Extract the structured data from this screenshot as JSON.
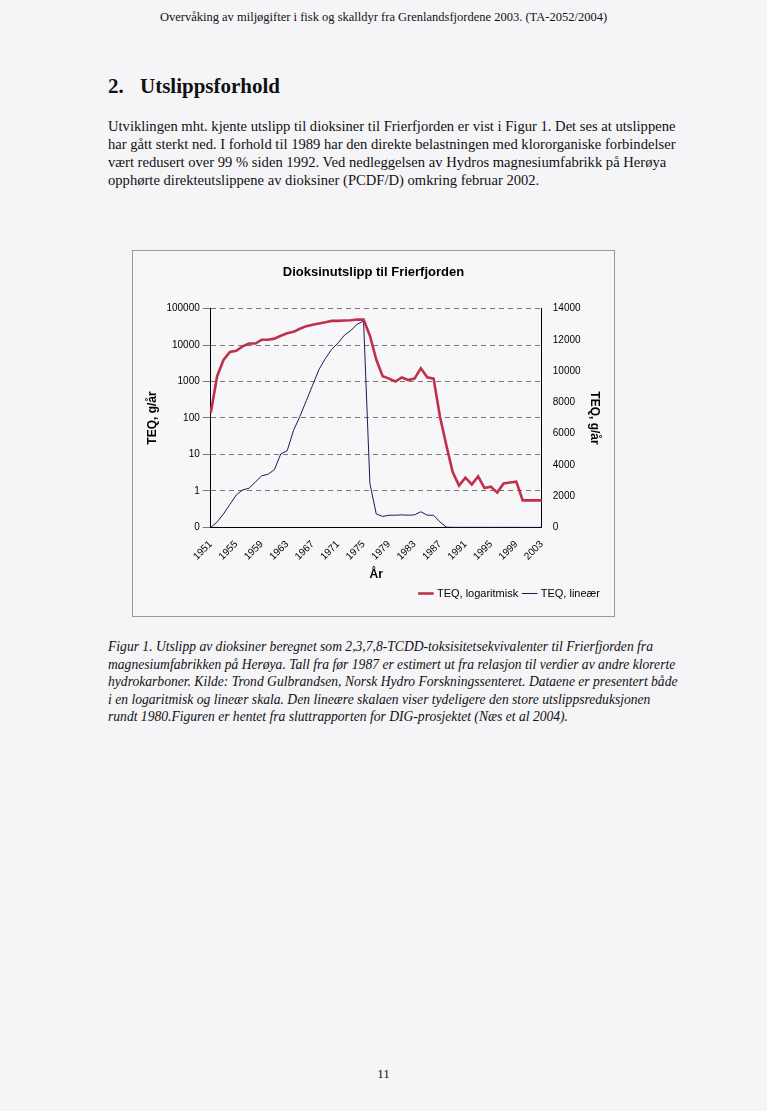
{
  "header": "Overvåking av miljøgifter i fisk og skalldyr fra Grenlandsfjordene 2003. (TA-2052/2004)",
  "section": {
    "number": "2.",
    "title": "Utslippsforhold"
  },
  "paragraph": "Utviklingen mht. kjente utslipp til dioksiner til Frierfjorden er vist i Figur 1. Det ses at utslippene har gått sterkt ned. I forhold til 1989 har den direkte belastningen med klororganiske forbindelser vært redusert over 99 % siden 1992. Ved nedleggelsen av Hydros magnesiumfabrikk på Herøya opphørte direkteutslippene av dioksiner (PCDF/D) omkring februar 2002.",
  "chart_data": {
    "type": "line",
    "title": "Dioksinutslipp til Frierfjorden",
    "x_label": "År",
    "y_label": "TEQ, g/år",
    "y2_label": "TEQ, g/år",
    "categories": [
      "1951",
      null,
      null,
      null,
      "1955",
      null,
      null,
      null,
      "1959",
      null,
      null,
      null,
      "1963",
      null,
      null,
      null,
      "1967",
      null,
      null,
      null,
      "1971",
      null,
      null,
      null,
      "1975",
      null,
      null,
      null,
      "1979",
      null,
      null,
      null,
      "1983",
      null,
      null,
      null,
      "1987",
      null,
      null,
      null,
      "1991",
      null,
      null,
      null,
      "1995",
      null,
      null,
      null,
      "1999",
      null,
      null,
      null,
      "2003"
    ],
    "series": [
      {
        "name": "TEQ, logaritmisk",
        "color": "#c0304a",
        "axis": "y",
        "values": [
          140,
          1400,
          3900,
          6500,
          7000,
          9200,
          11000,
          11000,
          14000,
          14000,
          15000,
          18000,
          21000,
          23000,
          28000,
          33000,
          36000,
          39000,
          42000,
          46000,
          46000,
          47000,
          48000,
          50000,
          50000,
          18000,
          4000,
          1400,
          1200,
          1000,
          1300,
          1100,
          1200,
          2300,
          1300,
          1200,
          110,
          18,
          3.3,
          1.4,
          2.3,
          1.5,
          2.5,
          1.2,
          1.3,
          0.9,
          1.6,
          1.7,
          1.8,
          0.55,
          0.55,
          0.55,
          0.55
        ]
      },
      {
        "name": "TEQ, lineær",
        "color": "#1a1a5e",
        "axis": "y2",
        "values": [
          0,
          350,
          860,
          1470,
          2070,
          2400,
          2500,
          2900,
          3300,
          3400,
          3700,
          4700,
          4900,
          6200,
          7100,
          8100,
          9100,
          10100,
          10800,
          11400,
          11800,
          12300,
          12600,
          13000,
          13200,
          2800,
          860,
          700,
          780,
          780,
          800,
          780,
          800,
          1000,
          780,
          780,
          350,
          18,
          3.3,
          1.4,
          2.3,
          1.5,
          2.5,
          1.2,
          1.3,
          0.9,
          1.6,
          1.7,
          1.8,
          0.55,
          0.55,
          0.55,
          0.55
        ]
      }
    ],
    "log": "y",
    "ylim": [
      0.1,
      100000
    ],
    "yticks": [
      {
        "value": 0.1,
        "label": "0"
      },
      1,
      10,
      100,
      1000,
      10000,
      100000
    ],
    "y2lim": [
      0,
      14000
    ],
    "y2ticks": [
      0,
      2000,
      4000,
      6000,
      8000,
      10000,
      12000,
      14000
    ],
    "grid": true,
    "legend": "bottom-right"
  },
  "caption": "Figur 1. Utslipp av dioksiner beregnet som 2,3,7,8-TCDD-toksisitetsekvivalenter til Frierfjorden fra magnesiumfabrikken på Herøya. Tall fra før 1987 er estimert ut fra relasjon til verdier av andre klorerte hydrokarboner. Kilde: Trond Gulbrandsen, Norsk Hydro Forskningssenteret. Dataene er presentert både i en logaritmisk og lineær skala. Den lineære skalaen viser tydeligere den store utslippsreduksjonen rundt 1980.Figuren er hentet fra sluttrapporten for DIG-prosjektet (Næs et al 2004).",
  "page_number": 11
}
